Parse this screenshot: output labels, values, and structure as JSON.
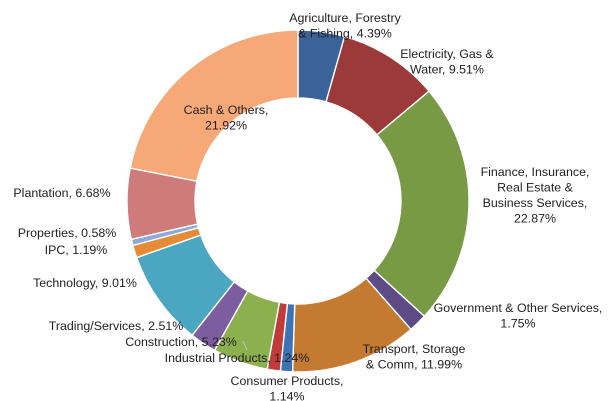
{
  "chart_data": {
    "type": "pie",
    "title": "",
    "categories": [
      "Agriculture, Forestry & Fishing",
      "Electricity, Gas & Water",
      "Finance, Insurance, Real Estate & Business Services",
      "Government & Other Services",
      "Transport, Storage & Comm",
      "Consumer Products",
      "Industrial Products",
      "Construction",
      "Trading/Services",
      "Technology",
      "IPC",
      "Properties",
      "Plantation",
      "Cash & Others"
    ],
    "values": [
      4.39,
      9.51,
      22.87,
      1.75,
      11.99,
      1.14,
      1.24,
      5.23,
      2.51,
      9.01,
      1.19,
      0.58,
      6.68,
      21.92
    ],
    "colors": [
      "#3a6399",
      "#9c3a3a",
      "#789a45",
      "#5e4b85",
      "#c57a31",
      "#3b73b4",
      "#c23b3b",
      "#8db04e",
      "#7b5da0",
      "#4ba7c1",
      "#e58a35",
      "#8ea9d6",
      "#cf7b7b",
      "#f6a977"
    ],
    "labels": [
      [
        "Agriculture, Forestry",
        "& Fishing, 4.39%"
      ],
      [
        "Electricity, Gas &",
        "Water, 9.51%"
      ],
      [
        "Finance, Insurance,",
        "Real Estate &",
        "Business Services,",
        "22.87%"
      ],
      [
        "Government & Other Services,",
        "1.75%"
      ],
      [
        "Transport, Storage",
        "& Comm, 11.99%"
      ],
      [
        "Consumer Products,",
        "1.14%"
      ],
      [
        "Industrial Products, 1.24%"
      ],
      [
        "Construction, 5.23%"
      ],
      [
        "Trading/Services, 2.51%"
      ],
      [
        "Technology, 9.01%"
      ],
      [
        "IPC, 1.19%"
      ],
      [
        "Properties, 0.58%"
      ],
      [
        "Plantation, 6.68%"
      ],
      [
        "Cash & Others,",
        "21.92%"
      ]
    ]
  }
}
